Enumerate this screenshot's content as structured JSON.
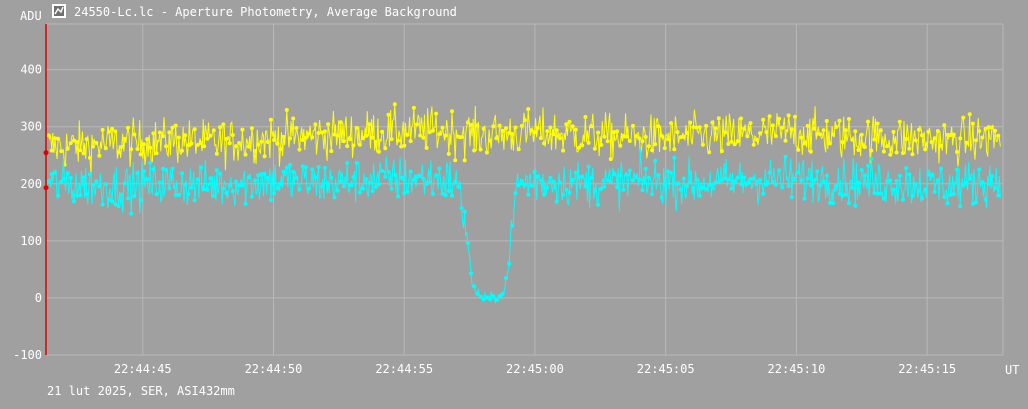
{
  "window": {
    "title": "24550-Lc.lc - Aperture Photometry, Average Background",
    "icon": "app-chart-icon"
  },
  "footer": {
    "caption": "21 lut 2025, SER, ASI432mm"
  },
  "colors": {
    "background": "#a0a0a0",
    "grid": "#b8b8b8",
    "series_yellow": "#ffff00",
    "series_cyan": "#00ffff",
    "cursor_line": "#e00000",
    "text": "#ffffff"
  },
  "chart_data": {
    "type": "line",
    "title": "24550-Lc.lc - Aperture Photometry, Average Background",
    "xlabel": "UT",
    "ylabel": "ADU",
    "ylim": [
      -100,
      480
    ],
    "yticks": [
      -100,
      0,
      100,
      200,
      300,
      400
    ],
    "xlim": [
      "22:44:41.3",
      "22:45:17.9"
    ],
    "xticks": [
      "22:44:45",
      "22:44:50",
      "22:44:55",
      "22:45:00",
      "22:45:05",
      "22:45:10",
      "22:45:15"
    ],
    "grid": true,
    "legend": "none",
    "series": [
      {
        "color": "#ffff00",
        "description": "noisy signal around 280 ADU across the whole interval",
        "x": [
          "22:44:42",
          "22:44:44",
          "22:44:46",
          "22:44:48",
          "22:44:50",
          "22:44:52",
          "22:44:54",
          "22:44:56",
          "22:44:58",
          "22:45:00",
          "22:45:02",
          "22:45:04",
          "22:45:06",
          "22:45:08",
          "22:45:10",
          "22:45:12",
          "22:45:14",
          "22:45:16",
          "22:45:17.5"
        ],
        "y": [
          265,
          270,
          275,
          272,
          280,
          285,
          290,
          295,
          285,
          290,
          285,
          280,
          282,
          285,
          290,
          282,
          280,
          275,
          280
        ]
      },
      {
        "color": "#00ffff",
        "description": "noisy signal around 205 ADU with a dip to about 0 ADU between 22:44:57.4 and 22:44:59.0",
        "x": [
          "22:44:42",
          "22:44:44",
          "22:44:46",
          "22:44:48",
          "22:44:50",
          "22:44:52",
          "22:44:54",
          "22:44:56",
          "22:44:57",
          "22:44:57.4",
          "22:44:57.6",
          "22:44:58",
          "22:44:58.5",
          "22:44:58.8",
          "22:44:59",
          "22:44:59.3",
          "22:45:00",
          "22:45:02",
          "22:45:04",
          "22:45:06",
          "22:45:08",
          "22:45:10",
          "22:45:12",
          "22:45:14",
          "22:45:16",
          "22:45:17.5"
        ],
        "y": [
          200,
          195,
          200,
          198,
          205,
          200,
          210,
          210,
          205,
          120,
          20,
          0,
          0,
          5,
          60,
          200,
          205,
          200,
          205,
          200,
          205,
          210,
          205,
          200,
          198,
          205
        ]
      }
    ]
  }
}
